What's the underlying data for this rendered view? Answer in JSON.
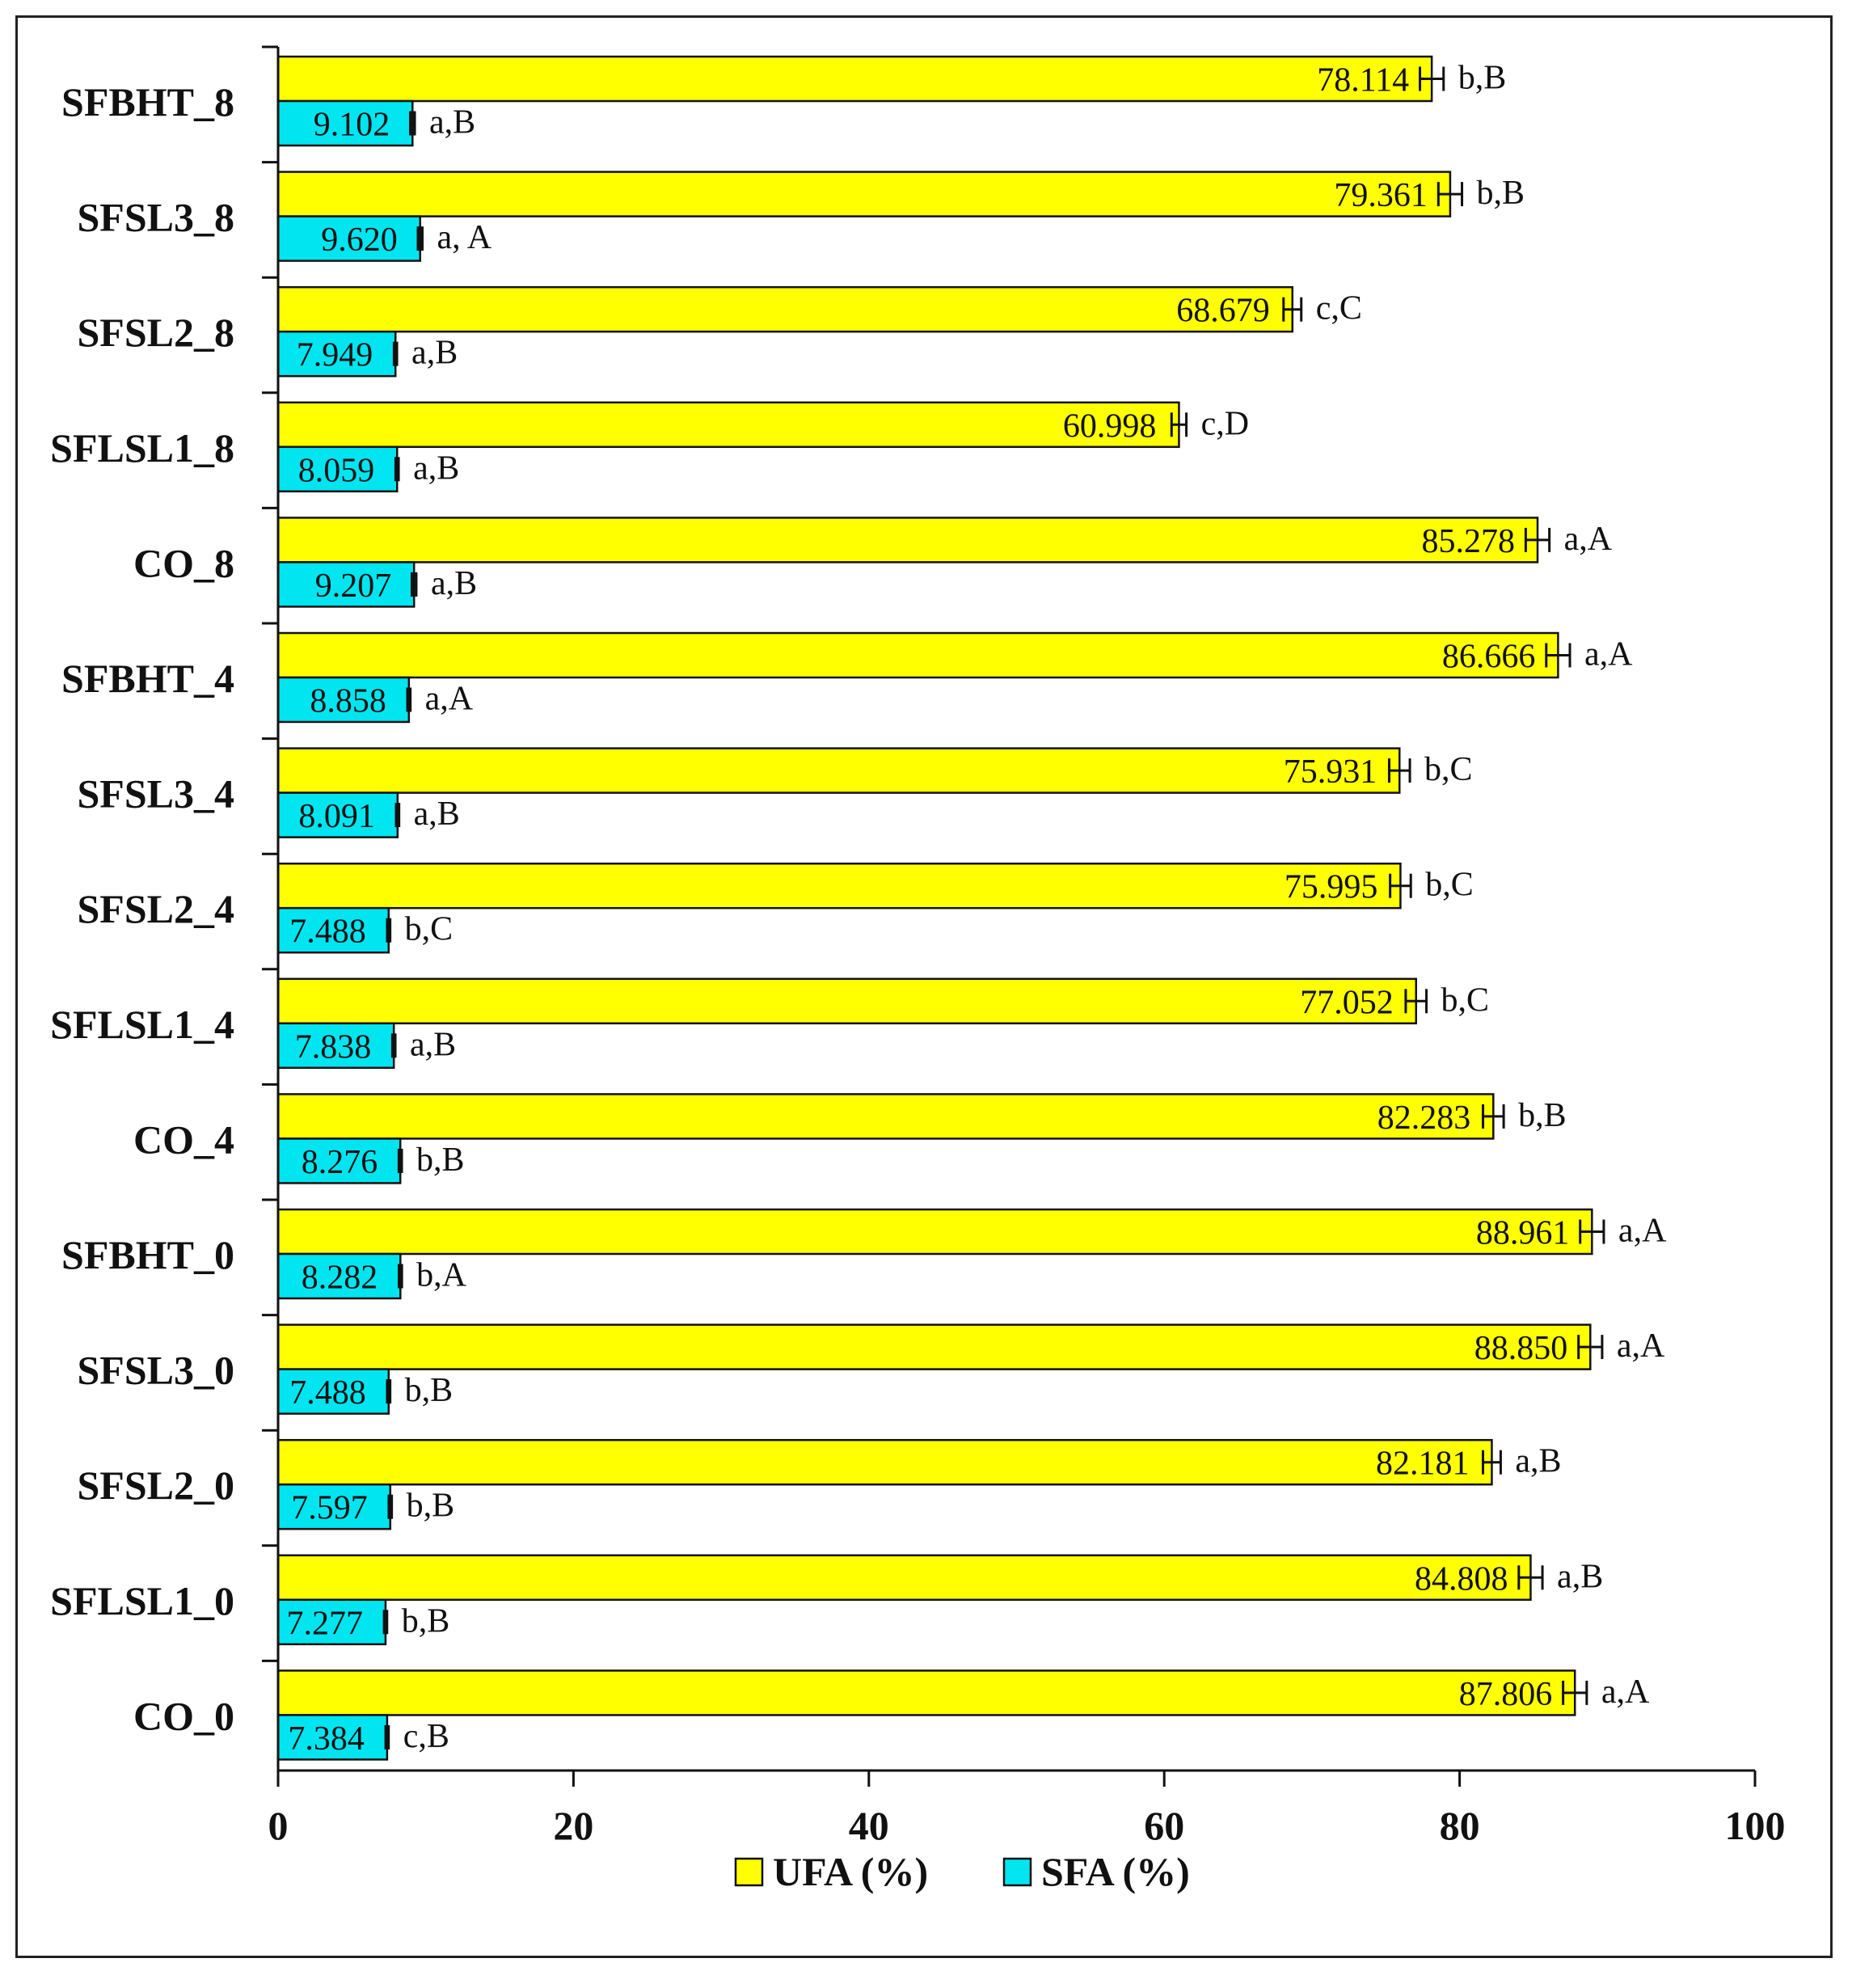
{
  "chart_data": {
    "type": "bar",
    "orientation": "horizontal",
    "title": "",
    "xlabel": "",
    "ylabel": "",
    "xlim": [
      0,
      100
    ],
    "x_ticks": [
      0,
      20,
      40,
      60,
      80,
      100
    ],
    "grid": false,
    "legend_position": "bottom",
    "categories": [
      "SFBHT_8",
      "SFSL3_8",
      "SFSL2_8",
      "SFLSL1_8",
      "CO_8",
      "SFBHT_4",
      "SFSL3_4",
      "SFSL2_4",
      "SFLSL1_4",
      "CO_4",
      "SFBHT_0",
      "SFSL3_0",
      "SFSL2_0",
      "SFLSL1_0",
      "CO_0"
    ],
    "series": [
      {
        "name": "UFA (%)",
        "color": "#ffff00",
        "values": [
          78.114,
          79.361,
          68.679,
          60.998,
          85.278,
          86.666,
          75.931,
          75.995,
          77.052,
          82.283,
          88.961,
          88.85,
          82.181,
          84.808,
          87.806
        ],
        "labels": [
          "78.114",
          "79.361",
          "68.679",
          "60.998",
          "85.278",
          "86.666",
          "75.931",
          "75.995",
          "77.052",
          "82.283",
          "88.961",
          "88.850",
          "82.181",
          "84.808",
          "87.806"
        ],
        "errors": [
          0.8,
          0.8,
          0.6,
          0.5,
          0.8,
          0.8,
          0.7,
          0.7,
          0.7,
          0.7,
          0.8,
          0.8,
          0.6,
          0.8,
          0.8
        ],
        "significance": [
          "b,B",
          "b,B",
          "c,C",
          "c,D",
          "a,A",
          "a,A",
          "b,C",
          "b,C",
          "b,C",
          "b,B",
          "a,A",
          "a,A",
          "a,B",
          "a,B",
          "a,A"
        ]
      },
      {
        "name": "SFA (%)",
        "color": "#00e5f0",
        "values": [
          9.102,
          9.62,
          7.949,
          8.059,
          9.207,
          8.858,
          8.091,
          7.488,
          7.838,
          8.276,
          8.282,
          7.488,
          7.597,
          7.277,
          7.384
        ],
        "labels": [
          "9.102",
          "9.620",
          "7.949",
          "8.059",
          "9.207",
          "8.858",
          "8.091",
          "7.488",
          "7.838",
          "8.276",
          "8.282",
          "7.488",
          "7.597",
          "7.277",
          "7.384"
        ],
        "errors": [
          0.15,
          0.15,
          0.1,
          0.1,
          0.15,
          0.1,
          0.1,
          0.1,
          0.1,
          0.1,
          0.1,
          0.1,
          0.1,
          0.1,
          0.1
        ],
        "significance": [
          "a,B",
          "a, A",
          "a,B",
          "a,B",
          "a,B",
          "a,A",
          "a,B",
          "b,C",
          "a,B",
          "b,B",
          "b,A",
          "b,B",
          "b,B",
          "b,B",
          "c,B"
        ]
      }
    ]
  }
}
